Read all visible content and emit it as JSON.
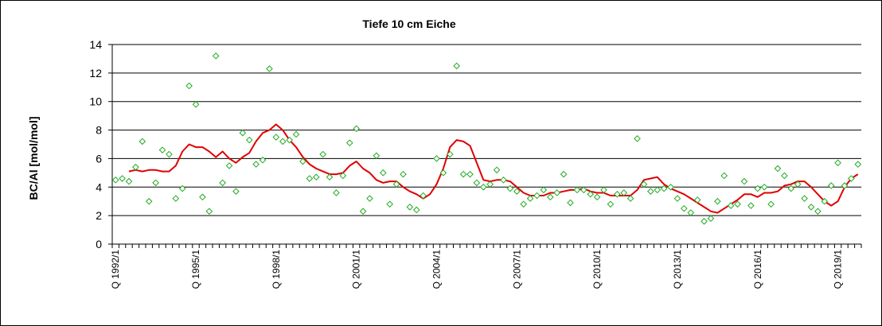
{
  "chart_data": {
    "type": "scatter",
    "title": "Tiefe  10 cm     Eiche",
    "xlabel": "",
    "ylabel": "BC/Al [mol/mol]",
    "ylim": [
      0,
      14
    ],
    "yticks": [
      0,
      2,
      4,
      6,
      8,
      10,
      12,
      14
    ],
    "xtick_labels": [
      "Q 1992/1",
      "Q 1995/1",
      "Q 1998/1",
      "Q 2001/1",
      "Q 2004/1",
      "Q 2007/1",
      "Q 2010/1",
      "Q 2013/1",
      "Q 2016/1",
      "Q 2019/1"
    ],
    "x_unit": "quarter index (0 = Q 1992/1)",
    "grid": true,
    "colors": {
      "points": "#22aa22",
      "line": "#e00000",
      "grid": "#000000"
    },
    "series": [
      {
        "kind": "points",
        "values": [
          4.5,
          4.6,
          4.4,
          5.4,
          7.2,
          3.0,
          4.3,
          6.6,
          6.3,
          3.2,
          3.9,
          11.1,
          9.8,
          3.3,
          2.3,
          13.2,
          4.3,
          5.5,
          3.7,
          7.8,
          7.3,
          5.6,
          5.9,
          12.3,
          7.5,
          7.2,
          7.3,
          7.7,
          5.8,
          4.6,
          4.7,
          6.3,
          4.7,
          3.6,
          4.8,
          7.1,
          8.1,
          2.3,
          3.2,
          6.2,
          5.0,
          2.8,
          4.2,
          4.9,
          2.6,
          2.4,
          3.4,
          null,
          6.0,
          5.0,
          6.3,
          12.5,
          4.9,
          4.9,
          4.3,
          4.0,
          4.2,
          5.2,
          4.5,
          3.9,
          3.7,
          2.8,
          3.2,
          3.4,
          3.8,
          3.3,
          3.6,
          4.9,
          2.9,
          3.8,
          3.8,
          3.5,
          3.3,
          3.8,
          2.8,
          3.5,
          3.6,
          3.2,
          7.4,
          4.2,
          3.7,
          3.8,
          3.9,
          4.0,
          3.2,
          2.5,
          2.2,
          3.1,
          1.6,
          1.8,
          3.0,
          4.8,
          2.7,
          2.8,
          4.4,
          2.7,
          3.9,
          4.0,
          2.8,
          5.3,
          4.8,
          3.9,
          4.2,
          3.2,
          2.6,
          2.3,
          3.0,
          4.1,
          5.7,
          4.1,
          4.6,
          5.6
        ]
      },
      {
        "kind": "line",
        "values": [
          null,
          null,
          5.1,
          5.2,
          5.1,
          5.2,
          5.2,
          5.1,
          5.1,
          5.5,
          6.5,
          7.0,
          6.8,
          6.8,
          6.5,
          6.1,
          6.5,
          6.0,
          5.7,
          6.1,
          6.4,
          7.2,
          7.8,
          8.0,
          8.4,
          8.0,
          7.3,
          6.8,
          6.1,
          5.6,
          5.3,
          5.1,
          4.9,
          4.9,
          5.0,
          5.5,
          5.8,
          5.3,
          5.0,
          4.5,
          4.3,
          4.4,
          4.4,
          4.0,
          3.7,
          3.5,
          3.2,
          3.5,
          4.2,
          5.3,
          6.8,
          7.3,
          7.2,
          6.9,
          5.7,
          4.5,
          4.4,
          4.5,
          4.5,
          4.4,
          4.0,
          3.6,
          3.4,
          3.4,
          3.4,
          3.6,
          3.6,
          3.7,
          3.8,
          3.8,
          3.9,
          3.7,
          3.6,
          3.6,
          3.4,
          3.4,
          3.4,
          3.4,
          3.8,
          4.5,
          4.6,
          4.7,
          4.2,
          3.9,
          3.7,
          3.5,
          3.2,
          2.9,
          2.6,
          2.3,
          2.2,
          2.5,
          2.8,
          3.1,
          3.5,
          3.5,
          3.3,
          3.6,
          3.6,
          3.7,
          4.1,
          4.2,
          4.4,
          4.4,
          4.0,
          3.5,
          3.0,
          2.7,
          3.0,
          4.0,
          4.6,
          4.9,
          null
        ]
      }
    ]
  }
}
